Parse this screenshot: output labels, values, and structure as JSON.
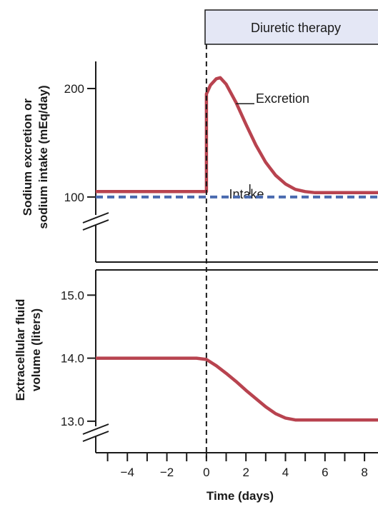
{
  "banner": {
    "label": "Diuretic therapy"
  },
  "colors": {
    "excretion": "#b8434f",
    "intake": "#4a6bb0",
    "banner_fill": "#e4e7f5",
    "axis": "#1a1a1a"
  },
  "chart_data": [
    {
      "type": "line",
      "ylabel_lines": [
        "Sodium excretion or",
        "sodium intake (mEq/day)"
      ],
      "xlim": [
        -5.6,
        8.9
      ],
      "ylim": [
        40,
        225
      ],
      "y_ticks": [
        100,
        200
      ],
      "y_tick_labels": [
        "100",
        "200"
      ],
      "axis_break": true,
      "grid": false,
      "series": [
        {
          "name": "Excretion",
          "style": "solid",
          "x": [
            -5.6,
            0,
            0,
            0.2,
            0.5,
            0.7,
            1,
            1.5,
            2,
            2.5,
            3,
            3.5,
            4,
            4.5,
            5,
            5.5,
            6,
            7,
            8,
            8.9
          ],
          "values": [
            105,
            105,
            195,
            203,
            209,
            210,
            204,
            187,
            167,
            148,
            132,
            120,
            112,
            107,
            105,
            104,
            104,
            104,
            104,
            104
          ]
        },
        {
          "name": "Intake",
          "style": "dashed",
          "x": [
            -5.6,
            8.9
          ],
          "values": [
            100,
            100
          ]
        }
      ],
      "annotations": [
        {
          "text": "Excretion",
          "series": "Excretion",
          "at_x": 1.5,
          "at_y": 186
        },
        {
          "text": "Intake",
          "series": "Intake",
          "at_x": 2.2,
          "at_y": 100
        }
      ]
    },
    {
      "type": "line",
      "ylabel_lines": [
        "Extracellular fluid",
        "volume (liters)"
      ],
      "xlabel": "Time (days)",
      "xlim": [
        -5.6,
        8.9
      ],
      "ylim": [
        12.5,
        15.4
      ],
      "y_ticks": [
        13.0,
        14.0,
        15.0
      ],
      "y_tick_labels": [
        "13.0",
        "14.0",
        "15.0"
      ],
      "x_ticks": [
        -4,
        -2,
        0,
        2,
        4,
        6,
        8
      ],
      "x_tick_labels": [
        "−4",
        "−2",
        "0",
        "2",
        "4",
        "6",
        "8"
      ],
      "axis_break": true,
      "grid": false,
      "series": [
        {
          "style": "solid",
          "x": [
            -5.6,
            -0.5,
            0,
            0.5,
            1,
            1.5,
            2,
            2.5,
            3,
            3.5,
            4,
            4.5,
            5,
            6,
            7,
            8,
            8.9
          ],
          "values": [
            14.0,
            14.0,
            13.98,
            13.88,
            13.76,
            13.63,
            13.49,
            13.36,
            13.23,
            13.12,
            13.05,
            13.02,
            13.02,
            13.02,
            13.02,
            13.02,
            13.02
          ]
        }
      ]
    }
  ]
}
